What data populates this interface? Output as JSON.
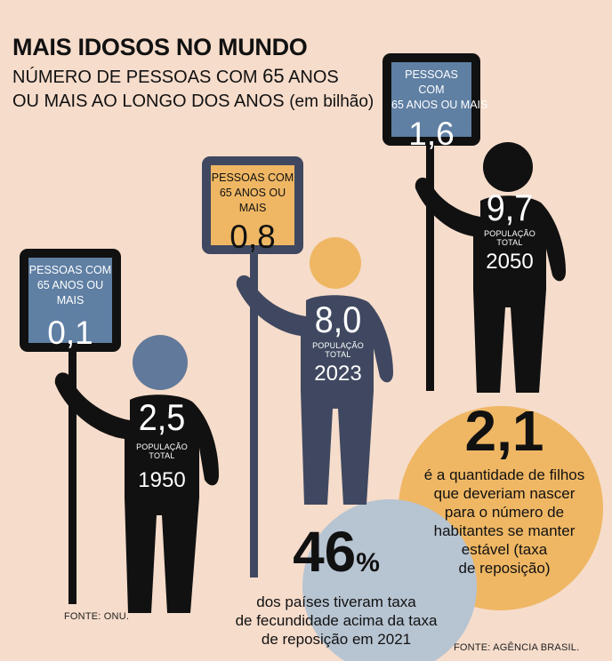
{
  "header": {
    "title": "MAIS IDOSOS NO MUNDO",
    "subtitle_line1_a": "NÚMERO DE PESSOAS COM ",
    "subtitle_line1_b": "65",
    "subtitle_line1_c": " ANOS",
    "subtitle_line2_a": "OU MAIS AO LONGO DOS ANOS ",
    "subtitle_line2_b": "(em bilhão)"
  },
  "chart_data": {
    "type": "pictogram",
    "title": "MAIS IDOSOS NO MUNDO",
    "subtitle": "NÚMERO DE PESSOAS COM 65 ANOS OU MAIS AO LONGO DOS ANOS (em bilhão)",
    "sign_label_line1": "PESSOAS COM",
    "sign_label_line2": "65 ANOS OU MAIS",
    "population_label_line1": "POPULAÇÃO",
    "population_label_line2": "TOTAL",
    "figures": [
      {
        "year": "1950",
        "total_population": "2,5",
        "aged_65_plus": "0,1",
        "sign_color": "#5f7fa3",
        "head_color": "#61799a",
        "body_color": "#111111"
      },
      {
        "year": "2023",
        "total_population": "8,0",
        "aged_65_plus": "0,8",
        "sign_color": "#efb764",
        "head_color": "#efb764",
        "body_color": "#3f4860"
      },
      {
        "year": "2050",
        "total_population": "9,7",
        "aged_65_plus": "1,6",
        "sign_color": "#5f7fa3",
        "head_color": "#111111",
        "body_color": "#111111"
      }
    ]
  },
  "stat_fertility": {
    "value": "2,1",
    "text_lines": [
      "é a quantidade de filhos",
      "que deveriam nascer",
      "para o número de",
      "habitantes se manter",
      "estável (taxa",
      "de reposição)"
    ],
    "color": "#efb764"
  },
  "stat_countries": {
    "value": "46",
    "unit": "%",
    "text_lines": [
      "dos países tiveram taxa",
      "de fecundidade acima da taxa",
      "de reposição em 2021"
    ],
    "color": "#b7c4d2"
  },
  "sources": {
    "left": "FONTE: ONU.",
    "right": "FONTE: AGÊNCIA BRASIL."
  }
}
